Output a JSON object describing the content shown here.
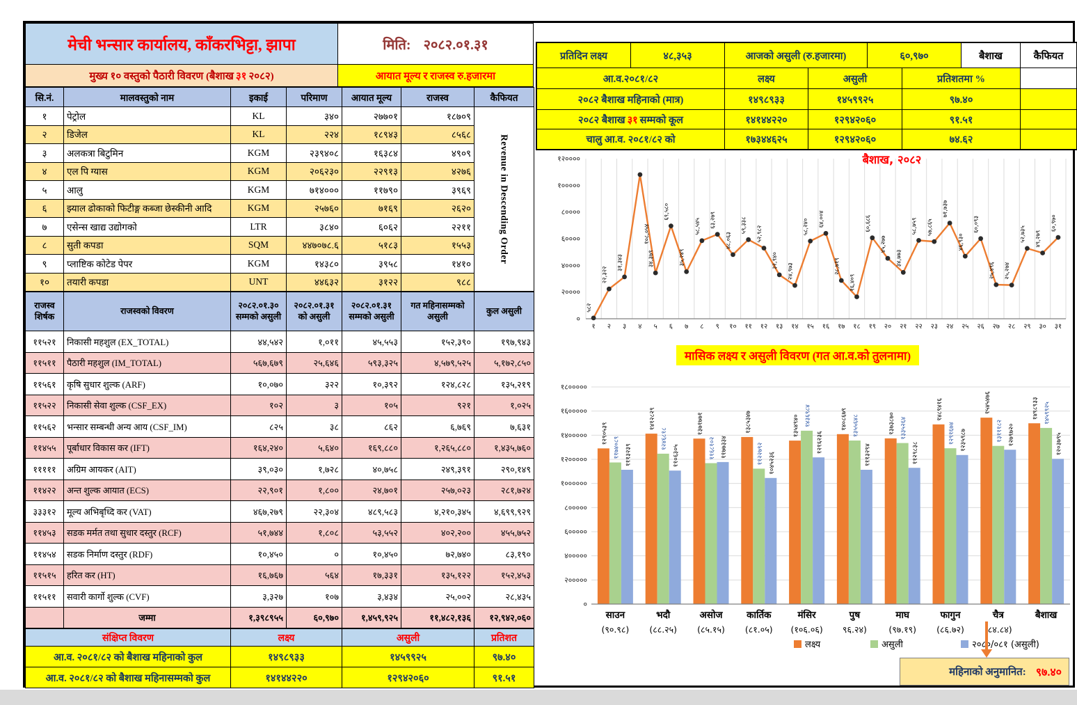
{
  "header": {
    "title": "मेची भन्सार कार्यालय, काँकरभिट्टा, झापा",
    "subtitle_pre": "मुख्य १० वस्तुको पैठारी विवरण (बैशाख",
    "subtitle_day": "३१",
    "subtitle_post": "२०८२)",
    "date_label": "मिति:",
    "date_value": "२०८२.०१.३१",
    "unit_note": "आयात मूल्य र राजस्व रु.हजारमा"
  },
  "goods_table": {
    "headers": [
      "सि.नं.",
      "मालवस्तुको नाम",
      "इकाई",
      "परिमाण",
      "आयात मूल्य",
      "राजस्व",
      "कैफियत"
    ],
    "remark_vertical": "Revenue in Descending Order",
    "rows": [
      [
        "१",
        "पेट्रोल",
        "KL",
        "३४०",
        "२७७०१",
        "१८७०९"
      ],
      [
        "२",
        "डिजेल",
        "KL",
        "२२४",
        "१८९४३",
        "८५६८"
      ],
      [
        "३",
        "अलकत्रा बिटुमिन",
        "KGM",
        "२३९४०८",
        "१६३८४",
        "४९०९"
      ],
      [
        "४",
        "एल पि ग्यास",
        "KGM",
        "२०६२३०",
        "२२९१३",
        "४२७६"
      ],
      [
        "५",
        "आलु",
        "KGM",
        "७१४०००",
        "११७९०",
        "३९६९"
      ],
      [
        "६",
        "झ्याल ढोकाको फिटीङ्ग कब्जा छेस्कीनी आदि",
        "KGM",
        "२५७६०",
        "७१६९",
        "२६२०"
      ],
      [
        "७",
        "एसेन्स खाद्य उद्योगको",
        "LTR",
        "३८४०",
        "६०६२",
        "२२११"
      ],
      [
        "८",
        "सुती कपडा",
        "SQM",
        "४४७०७८.६",
        "५१८३",
        "१५५३"
      ],
      [
        "९",
        "प्लाष्टिक कोटेड पेपर",
        "KGM",
        "१४३८०",
        "३९५८",
        "१४१०"
      ],
      [
        "१०",
        "तयारी कपडा",
        "UNT",
        "४४६३२",
        "३१२२",
        "९८८"
      ]
    ]
  },
  "revenue_table": {
    "headers": [
      "राजस्व शिर्षक",
      "राजस्वको विवरण",
      "२०८२.०१.३० सम्मको असुली",
      "२०८२.०१.३१ को असुली",
      "२०८२.०१.३१ सम्मको असुली",
      "गत महिनासम्मको असुली",
      "कुल असुली"
    ],
    "rows": [
      [
        "११५२१",
        "निकासी महशुल (EX_TOTAL)",
        "४४,५४२",
        "१,०११",
        "४५,५५३",
        "१५२,३९०",
        "१९७,९४३"
      ],
      [
        "११५११",
        "पैठारी महशुल (IM_TOTAL)",
        "५६७,६७९",
        "२५,६४६",
        "५९३,३२५",
        "४,५७९,५२५",
        "५,१७२,८५०"
      ],
      [
        "११५६१",
        "कृषि सुधार शुल्क (ARF)",
        "१०,०७०",
        "३२२",
        "१०,३९२",
        "१२४,८२८",
        "१३५,२१९"
      ],
      [
        "११५२२",
        "निकासी सेवा शुल्क (CSF_EX)",
        "१०२",
        "३",
        "१०५",
        "९२१",
        "१,०२५"
      ],
      [
        "११५६२",
        "भन्सार सम्बन्धी अन्य आय (CSF_IM)",
        "८२५",
        "३८",
        "८६२",
        "६,७६९",
        "७,६३१"
      ],
      [
        "११४५५",
        "पूर्बाधार विकास कर (IFT)",
        "१६४,२४०",
        "५,६४०",
        "१६९,८८०",
        "१,२६५,८८०",
        "१,४३५,७६०"
      ],
      [
        "१११११",
        "अग्रिम आयकर (AIT)",
        "३९,०३०",
        "१,७२८",
        "४०,७५८",
        "२४९,३९१",
        "२९०,१४९"
      ],
      [
        "११४२२",
        "अन्त शुल्क आयात (ECS)",
        "२२,९०१",
        "१,८००",
        "२४,७०१",
        "२५७,०२३",
        "२८१,७२४"
      ],
      [
        "३३३१२",
        "मूल्य अभिबृध्दि कर (VAT)",
        "४६७,२७९",
        "२२,३०४",
        "४८९,५८३",
        "४,२१०,३४५",
        "४,६९९,९२९"
      ],
      [
        "११४५३",
        "सडक मर्मत तथा सुधार दस्तुर (RCF)",
        "५१,७४४",
        "१,८०८",
        "५३,५५२",
        "४०२,२००",
        "४५५,७५२"
      ],
      [
        "११४५४",
        "सडक निर्माण दस्तुर (RDF)",
        "१०,४५०",
        "०",
        "१०,४५०",
        "७२,७४०",
        "८३,१९०"
      ],
      [
        "११५१५",
        "हरित कर (HT)",
        "१६,७६७",
        "५६४",
        "१७,३३१",
        "१३५,१२२",
        "१५२,४५३"
      ],
      [
        "११५११",
        "सवारी कार्गो शुल्क (CVF)",
        "३,३२७",
        "१०७",
        "३,४३४",
        "२५,००२",
        "२८,४३५"
      ]
    ],
    "total_row": [
      "",
      "जम्मा",
      "१,३९८९५५",
      "६०,९७०",
      "१,४५९,९२५",
      "११,४८२,१३६",
      "१२,९४२,०६०"
    ]
  },
  "summary_table": {
    "headers": [
      "संक्षिप्त विवरण",
      "लक्ष्य",
      "असुली",
      "प्रतिशत"
    ],
    "rows": [
      [
        "आ.व. २०८१/८२ को बैशाख महिनाको कुल",
        "१४९८९३३",
        "१४५९९२५",
        "९७.४०"
      ],
      [
        "आ.व. २०८१/८२ को बैशाख महिनासम्मको कुल",
        "१४१४४२२०",
        "१२९४२०६०",
        "९१.५१"
      ]
    ]
  },
  "daily_panel": {
    "per_day_target_label": "प्रतिदिन लक्ष्य",
    "per_day_target_value": "४८,३५३",
    "today_label": "आजको असुली (रु.हजारमा)",
    "today_value": "६०,९७०",
    "month_label": "बैशाख",
    "remark_label": "कैफियत",
    "fy_label": "आ.व.२०८१/८२",
    "col_labels": [
      "लक्ष्य",
      "असुली",
      "प्रतिशतमा %"
    ],
    "rows": [
      {
        "pre": "२०८२ बैशाख महिनाको (मात्र)",
        "day": "",
        "post": "",
        "target": "१४९८९३३",
        "collection": "१४५९९२५",
        "pct": "९७.४०"
      },
      {
        "pre": "२०८२ बैशाख",
        "day": "३१",
        "post": "सम्मको कूल",
        "target": "१४१४४२२०",
        "collection": "१२९४२०६०",
        "pct": "९१.५१"
      },
      {
        "pre": "चालु आ.व. २०८१/८२ को",
        "day": "",
        "post": "",
        "target": "१७३४४६२५",
        "collection": "१२९४२०६०",
        "pct": "७४.६२"
      }
    ]
  },
  "footer_note": {
    "label": "महिनाको अनुमानित:",
    "value": "९७.४०"
  },
  "colors": {
    "line_orange": "#ED7D31",
    "marker": "#2B2B2B",
    "bar_target": "#ED7D31",
    "bar_asuli": "#A9D18E",
    "bar_prev": "#8FAADC",
    "asuli_label_blue": "#2E58A6",
    "header_blue": "#B4C6E7",
    "title_blue": "#BDD7EE",
    "gold_row": "#FFE699",
    "pink_row": "#F7CBC8",
    "yellow": "#FFFF00",
    "red": "#FF0000"
  },
  "chart_data": [
    {
      "type": "line",
      "title": "बैशाख, २०८२",
      "xlabel": "",
      "ylabel": "",
      "x": [
        1,
        2,
        3,
        4,
        5,
        6,
        7,
        8,
        9,
        10,
        11,
        12,
        13,
        14,
        15,
        16,
        17,
        18,
        19,
        20,
        21,
        22,
        23,
        24,
        25,
        26,
        27,
        28,
        29,
        30,
        31
      ],
      "values": [
        582,
        22322,
        31343,
        108054,
        34379,
        69580,
        35249,
        58545,
        63279,
        48063,
        59338,
        52982,
        32940,
        24973,
        58240,
        64004,
        28719,
        16409,
        60686,
        45277,
        34773,
        58759,
        57865,
        71737,
        46930,
        60093,
        25496,
        25274,
        52735,
        49279,
        60970
      ],
      "ylim": [
        0,
        120000
      ],
      "ytick_step": 20000,
      "grid": "vertical",
      "digit_script": "devanagari",
      "series_color": "#ED7D31"
    },
    {
      "type": "bar",
      "title": "मासिक लक्ष्य र असुली विवरण (गत आ.व.को तुलनामा)",
      "categories": [
        "साउन",
        "भदौ",
        "असोज",
        "कार्तिक",
        "मंसिर",
        "पुष",
        "माघ",
        "फागुन",
        "चैत्र",
        "बैशाख"
      ],
      "category_pcts": [
        "(९०.९८)",
        "(८८.२५)",
        "(८५.१५)",
        "(८१.०५)",
        "(१०६.०६)",
        "९६.२४)",
        "(९७.१९)",
        "(८६.७२)",
        "(८४.८४)",
        ""
      ],
      "series": [
        {
          "name": "लक्ष्य",
          "values": [
            1290539,
            1412829,
            1371771,
            1385347,
            1354940,
            1408679,
            1373870,
            1489416,
            1545476,
            1498933
          ]
        },
        {
          "name": "असुली",
          "values": [
            1174089,
            1246818,
            1168102,
            1122792,
            1436984,
            1355648,
            1335264,
            1291674,
            1311182,
            1459925
          ]
        },
        {
          "name": "२०८०/०८१ (असुली)",
          "values": [
            1113239,
            1106305,
            1177334,
            1045236,
            1216236,
            1113294,
            1129838,
            1235987,
            1279720,
            1203795
          ]
        }
      ],
      "ylim": [
        0,
        1800000
      ],
      "ytick_step": 200000,
      "grid": "horizontal",
      "legend_position": "bottom",
      "digit_script": "devanagari"
    }
  ]
}
